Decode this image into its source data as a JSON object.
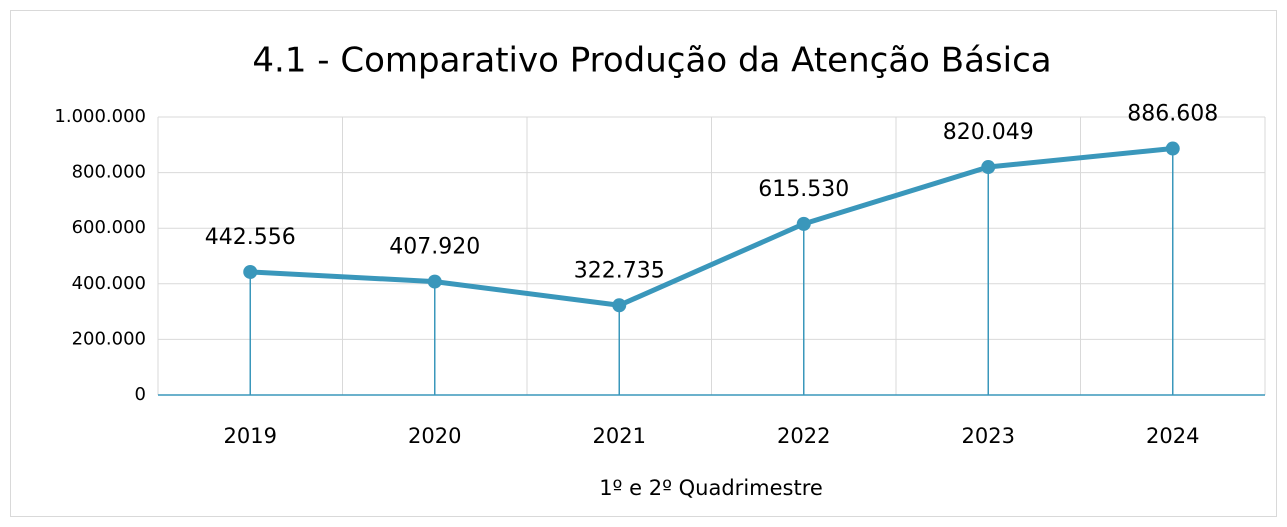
{
  "chart_data": {
    "type": "line",
    "title": "4.1 - Comparativo Produção da Atenção Básica",
    "x_label": "1º e 2º Quadrimestre",
    "categories": [
      "2019",
      "2020",
      "2021",
      "2022",
      "2023",
      "2024"
    ],
    "values": [
      442556,
      407920,
      322735,
      615530,
      820049,
      886608
    ],
    "value_labels": [
      "442.556",
      "407.920",
      "322.735",
      "615.530",
      "820.049",
      "886.608"
    ],
    "color": "#3a97bb",
    "ylim": [
      0,
      1000000
    ],
    "yticks": [
      0,
      {
        "value": 200000,
        "label": "200.000"
      },
      {
        "value": 400000,
        "label": "400.000"
      },
      {
        "value": 600000,
        "label": "600.000"
      },
      {
        "value": 800000,
        "label": "800.000"
      },
      {
        "value": 1000000,
        "label": "1.000.000"
      }
    ],
    "grid": true,
    "drop_lines": true
  }
}
